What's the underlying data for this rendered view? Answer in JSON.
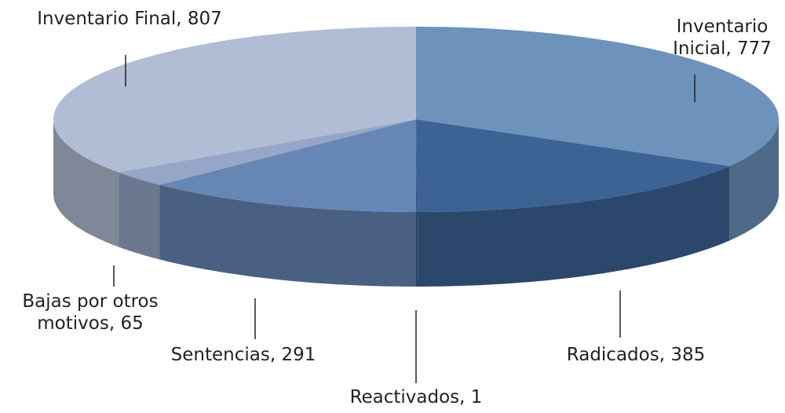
{
  "chart_data": {
    "type": "pie",
    "values": [
      777,
      385,
      1,
      291,
      65,
      807
    ],
    "value_labels": [
      "Inventario Inicial, 777",
      "Radicados, 385",
      "Reactivados, 1",
      "Sentencias, 291",
      "Bajas por otros motivos, 65",
      "Inventario Final, 807"
    ],
    "colors": [
      "#6d93bd",
      "#3c6394",
      "#2f4f7a",
      "#6686b5",
      "#95a6c6",
      "#b1bcd5"
    ]
  }
}
